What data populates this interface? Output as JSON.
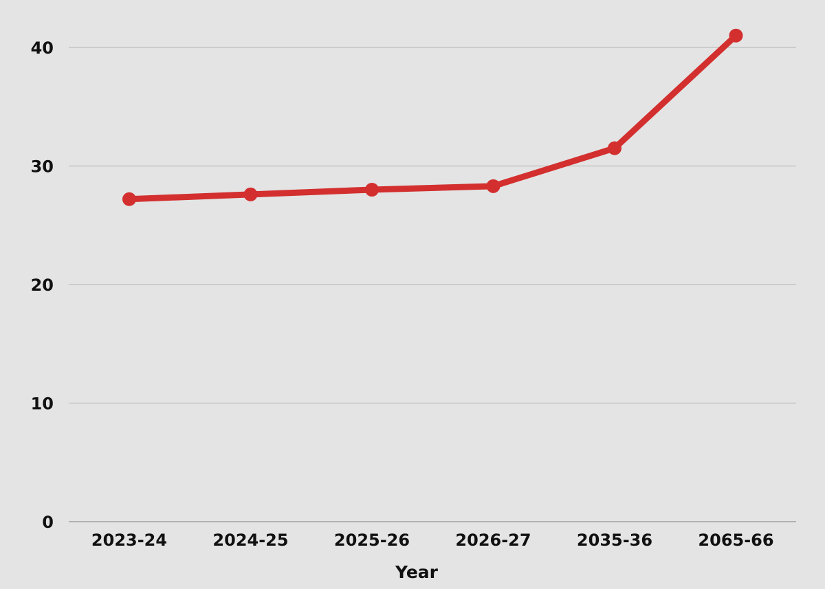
{
  "chart_data": {
    "type": "line",
    "title": "",
    "xlabel": "Year",
    "ylabel": "",
    "categories": [
      "2023-24",
      "2024-25",
      "2025-26",
      "2026-27",
      "2035-36",
      "2065-66"
    ],
    "series": [
      {
        "values": [
          27.2,
          27.6,
          28.0,
          28.3,
          31.5,
          41.0
        ],
        "color": "#d32f2f"
      }
    ],
    "ylim": [
      0,
      40
    ],
    "yticks": [
      0,
      10,
      20,
      30,
      40
    ],
    "grid": true,
    "legend": "none"
  }
}
